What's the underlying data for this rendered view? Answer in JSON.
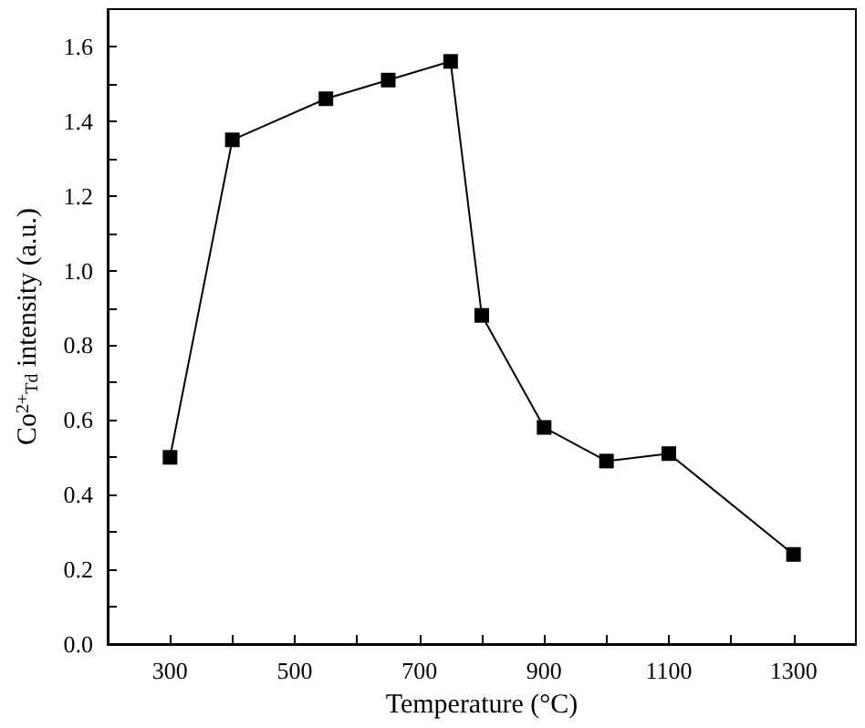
{
  "chart_data": {
    "type": "line",
    "xlabel": "Temperature (°C)",
    "ylabel": "Co$^{2+}$$_{Td}$ intensity (a.u.)",
    "x": [
      300,
      400,
      550,
      650,
      750,
      800,
      900,
      1000,
      1100,
      1300
    ],
    "series": [
      {
        "color": "#000000",
        "values": [
          0.5,
          1.35,
          1.46,
          1.51,
          1.56,
          0.88,
          0.58,
          0.49,
          0.51,
          0.24
        ]
      }
    ],
    "xlim": [
      200,
      1400
    ],
    "xticks": [
      300,
      {
        "value": 400,
        "label": null
      },
      500,
      {
        "value": 600,
        "label": null
      },
      700,
      {
        "value": 800,
        "label": null
      },
      900,
      {
        "value": 1000,
        "label": null
      },
      1100,
      {
        "value": 1200,
        "label": null
      },
      1300
    ],
    "ylim": [
      0,
      1.7
    ],
    "yticks": [
      "0.0",
      {
        "value": 0.1,
        "label": null
      },
      0.2,
      {
        "value": 0.3,
        "label": null
      },
      0.4,
      {
        "value": 0.5,
        "label": null
      },
      0.6,
      {
        "value": 0.7,
        "label": null
      },
      0.8,
      {
        "value": 0.9,
        "label": null
      },
      "1.0",
      {
        "value": 1.1,
        "label": null
      },
      1.2,
      {
        "value": 1.3,
        "label": null
      },
      1.4,
      {
        "value": 1.5,
        "label": null
      },
      1.6
    ],
    "marker": "square",
    "line_style": "solid",
    "grid": false
  }
}
